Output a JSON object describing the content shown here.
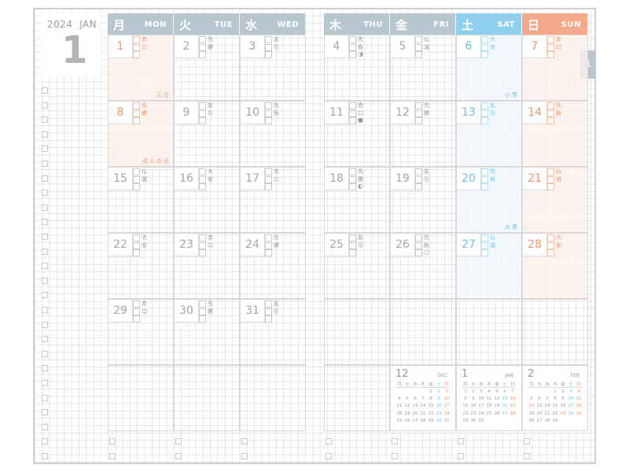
{
  "header": {
    "year": "2024",
    "month_en": "JAN",
    "month_num": "1"
  },
  "tab": "1",
  "colors": {
    "weekday_header": "#b8c7cf",
    "sat_header": "#8fd0f0",
    "sun_header": "#f3a98a",
    "sat_text": "#6cc4ea",
    "sun_text": "#f0956a",
    "weekday_text": "#a5a5a5",
    "sat_tint": "#f1f8fd",
    "sun_tint": "#fdf1ec"
  },
  "weekdays": [
    {
      "jp": "月",
      "en": "MON"
    },
    {
      "jp": "火",
      "en": "TUE"
    },
    {
      "jp": "水",
      "en": "WED"
    },
    {
      "jp": "木",
      "en": "THU"
    },
    {
      "jp": "金",
      "en": "FRI"
    },
    {
      "jp": "土",
      "en": "SAT"
    },
    {
      "jp": "日",
      "en": "SUN"
    }
  ],
  "days": [
    {
      "d": "1",
      "rk": "赤口",
      "hol": true,
      "label": "元日"
    },
    {
      "d": "2",
      "rk": "先勝"
    },
    {
      "d": "3",
      "rk": "友引"
    },
    {
      "d": "4",
      "rk": "先負",
      "moon": "◑"
    },
    {
      "d": "5",
      "rk": "仏滅"
    },
    {
      "d": "6",
      "rk": "大安",
      "label": "小寒"
    },
    {
      "d": "7",
      "rk": "赤口"
    },
    {
      "d": "8",
      "rk": "先勝",
      "hol": true,
      "label": "成人の日"
    },
    {
      "d": "9",
      "rk": "友引"
    },
    {
      "d": "10",
      "rk": "先負"
    },
    {
      "d": "11",
      "rk": "赤口",
      "moon": "●"
    },
    {
      "d": "12",
      "rk": "先勝"
    },
    {
      "d": "13",
      "rk": "友引"
    },
    {
      "d": "14",
      "rk": "先負"
    },
    {
      "d": "15",
      "rk": "仏滅"
    },
    {
      "d": "16",
      "rk": "大安"
    },
    {
      "d": "17",
      "rk": "赤口"
    },
    {
      "d": "18",
      "rk": "先勝",
      "moon": "◐"
    },
    {
      "d": "19",
      "rk": "友引"
    },
    {
      "d": "20",
      "rk": "先負",
      "label": "大寒"
    },
    {
      "d": "21",
      "rk": "仏滅"
    },
    {
      "d": "22",
      "rk": "大安"
    },
    {
      "d": "23",
      "rk": "赤口"
    },
    {
      "d": "24",
      "rk": "先勝"
    },
    {
      "d": "25",
      "rk": "友引"
    },
    {
      "d": "26",
      "rk": "先負",
      "moon": "○"
    },
    {
      "d": "27",
      "rk": "仏滅"
    },
    {
      "d": "28",
      "rk": "大安"
    },
    {
      "d": "29",
      "rk": "赤口"
    },
    {
      "d": "30",
      "rk": "先勝"
    },
    {
      "d": "31",
      "rk": "友引"
    }
  ],
  "mini_head": [
    "月",
    "火",
    "水",
    "木",
    "金",
    "土",
    "日"
  ],
  "mini_calendars": [
    {
      "num": "12",
      "en": "DEC",
      "holidays": [],
      "weeks": [
        [
          "",
          "",
          "",
          "",
          "1",
          "2",
          "3"
        ],
        [
          "4",
          "5",
          "6",
          "7",
          "8",
          "9",
          "10"
        ],
        [
          "11",
          "12",
          "13",
          "14",
          "15",
          "16",
          "17"
        ],
        [
          "18",
          "19",
          "20",
          "21",
          "22",
          "23",
          "24"
        ],
        [
          "25",
          "26",
          "27",
          "28",
          "29",
          "30",
          "31"
        ]
      ]
    },
    {
      "num": "1",
      "en": "JAN",
      "holidays": [
        "1",
        "8"
      ],
      "weeks": [
        [
          "1",
          "2",
          "3",
          "4",
          "5",
          "6",
          "7"
        ],
        [
          "8",
          "9",
          "10",
          "11",
          "12",
          "13",
          "14"
        ],
        [
          "15",
          "16",
          "17",
          "18",
          "19",
          "20",
          "21"
        ],
        [
          "22",
          "23",
          "24",
          "25",
          "26",
          "27",
          "28"
        ],
        [
          "29",
          "30",
          "31",
          "",
          "",
          "",
          ""
        ]
      ]
    },
    {
      "num": "2",
      "en": "FEB",
      "holidays": [
        "12",
        "23"
      ],
      "weeks": [
        [
          "",
          "",
          "",
          "1",
          "2",
          "3",
          "4"
        ],
        [
          "5",
          "6",
          "7",
          "8",
          "9",
          "10",
          "11"
        ],
        [
          "12",
          "13",
          "14",
          "15",
          "16",
          "17",
          "18"
        ],
        [
          "19",
          "20",
          "21",
          "22",
          "23",
          "24",
          "25"
        ],
        [
          "26",
          "27",
          "28",
          "29",
          "",
          "",
          ""
        ]
      ]
    }
  ]
}
